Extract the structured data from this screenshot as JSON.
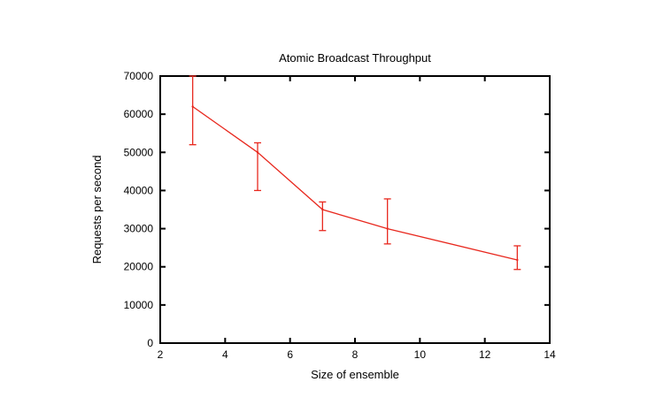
{
  "chart_data": {
    "type": "line",
    "title": "Atomic Broadcast Throughput",
    "xlabel": "Size of ensemble",
    "ylabel": "Requests per second",
    "xlim": [
      2,
      14
    ],
    "ylim": [
      0,
      70000
    ],
    "x_ticks": [
      2,
      4,
      6,
      8,
      10,
      12,
      14
    ],
    "y_ticks": [
      0,
      10000,
      20000,
      30000,
      40000,
      50000,
      60000,
      70000
    ],
    "grid": false,
    "legend": "none",
    "series": [
      {
        "color": "#e8281e",
        "points": [
          {
            "x": 3,
            "y": 62000,
            "err_low": 52000,
            "err_high": 70000
          },
          {
            "x": 5,
            "y": 50000,
            "err_low": 40000,
            "err_high": 52500
          },
          {
            "x": 7,
            "y": 35000,
            "err_low": 29500,
            "err_high": 37000
          },
          {
            "x": 9,
            "y": 30000,
            "err_low": 26000,
            "err_high": 37800
          },
          {
            "x": 13,
            "y": 21800,
            "err_low": 19300,
            "err_high": 25500
          }
        ]
      }
    ]
  }
}
